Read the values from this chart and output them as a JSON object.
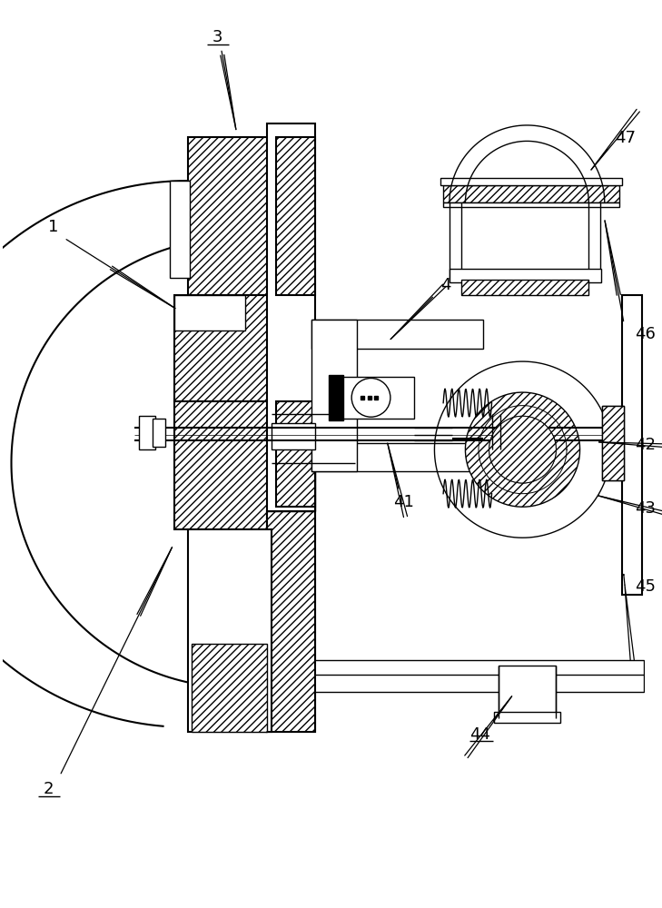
{
  "bg_color": "#ffffff",
  "line_color": "#000000",
  "fig_width": 7.29,
  "fig_height": 10.0,
  "dpi": 100
}
